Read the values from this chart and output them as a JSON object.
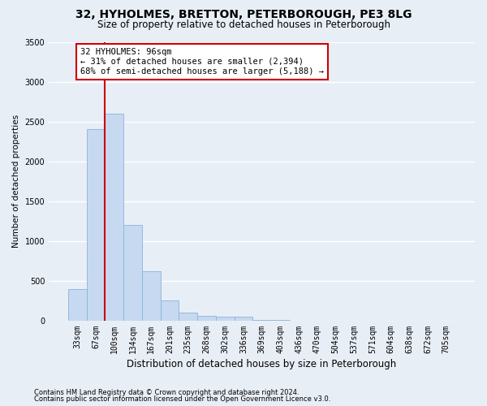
{
  "title1": "32, HYHOLMES, BRETTON, PETERBOROUGH, PE3 8LG",
  "title2": "Size of property relative to detached houses in Peterborough",
  "xlabel": "Distribution of detached houses by size in Peterborough",
  "ylabel": "Number of detached properties",
  "categories": [
    "33sqm",
    "67sqm",
    "100sqm",
    "134sqm",
    "167sqm",
    "201sqm",
    "235sqm",
    "268sqm",
    "302sqm",
    "336sqm",
    "369sqm",
    "403sqm",
    "436sqm",
    "470sqm",
    "504sqm",
    "537sqm",
    "571sqm",
    "604sqm",
    "638sqm",
    "672sqm",
    "705sqm"
  ],
  "values": [
    400,
    2400,
    2600,
    1200,
    620,
    250,
    100,
    60,
    55,
    50,
    10,
    5,
    0,
    0,
    0,
    0,
    0,
    0,
    0,
    0,
    0
  ],
  "bar_color": "#c6d9f0",
  "bar_edge_color": "#8ab4d8",
  "vline_index": 2,
  "vline_color": "#cc0000",
  "annotation_text": "32 HYHOLMES: 96sqm\n← 31% of detached houses are smaller (2,394)\n68% of semi-detached houses are larger (5,188) →",
  "annotation_box_facecolor": "white",
  "annotation_box_edgecolor": "#cc0000",
  "ylim": [
    0,
    3500
  ],
  "yticks": [
    0,
    500,
    1000,
    1500,
    2000,
    2500,
    3000,
    3500
  ],
  "footnote1": "Contains HM Land Registry data © Crown copyright and database right 2024.",
  "footnote2": "Contains public sector information licensed under the Open Government Licence v3.0.",
  "fig_facecolor": "#e8eef6",
  "ax_facecolor": "#e8eef6",
  "grid_color": "white",
  "title1_fontsize": 10,
  "title2_fontsize": 8.5,
  "xlabel_fontsize": 8.5,
  "ylabel_fontsize": 7.5,
  "tick_fontsize": 7,
  "annot_fontsize": 7.5,
  "footnote_fontsize": 6
}
